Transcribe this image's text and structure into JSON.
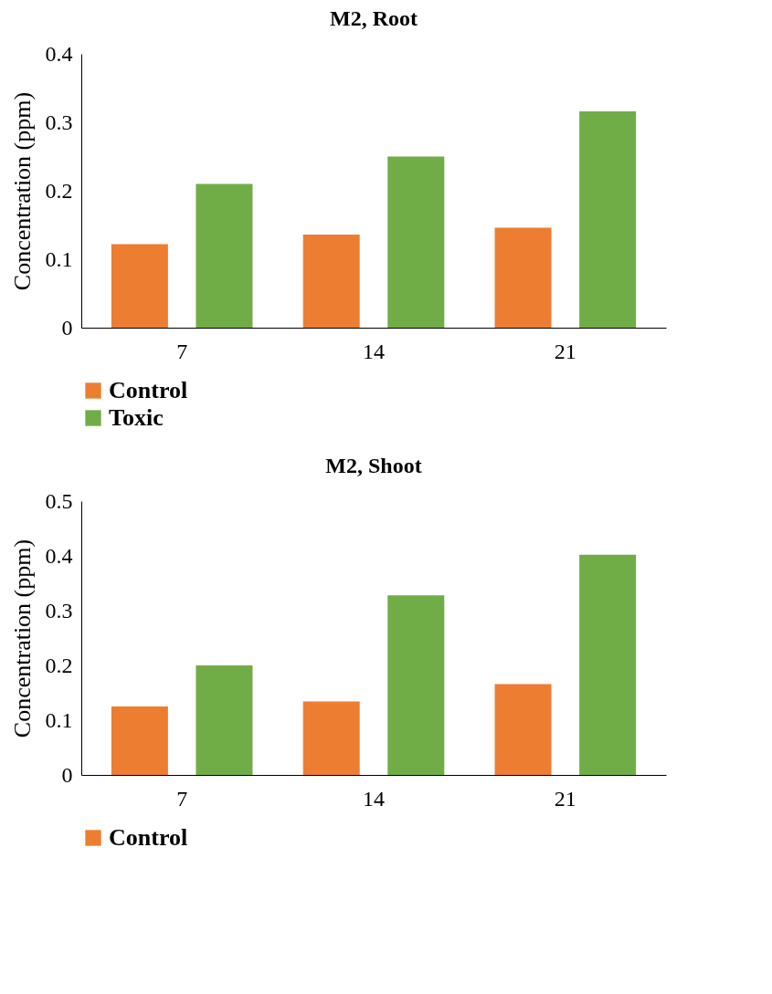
{
  "chart_data": [
    {
      "type": "bar",
      "title": "M2, Root",
      "ylabel": "Concentration (ppm)",
      "categories": [
        "7",
        "14",
        "21"
      ],
      "ylim": [
        0,
        0.4
      ],
      "yticks": [
        0,
        0.1,
        0.2,
        0.3,
        0.4
      ],
      "grid": false,
      "legend": "bottom",
      "series": [
        {
          "name": "Control",
          "color": "#ed7d31",
          "values": [
            0.122,
            0.136,
            0.146
          ]
        },
        {
          "name": "Toxic",
          "color": "#70ad47",
          "values": [
            0.21,
            0.25,
            0.316
          ]
        }
      ]
    },
    {
      "type": "bar",
      "title": "M2, Shoot",
      "ylabel": "Concentration (ppm)",
      "categories": [
        "7",
        "14",
        "21"
      ],
      "ylim": [
        0,
        0.5
      ],
      "yticks": [
        0,
        0.1,
        0.2,
        0.3,
        0.4,
        0.5
      ],
      "grid": false,
      "legend": "bottom",
      "series": [
        {
          "name": "Control",
          "color": "#ed7d31",
          "values": [
            0.125,
            0.134,
            0.166
          ]
        },
        {
          "color": "#70ad47",
          "values": [
            0.2,
            0.328,
            0.402
          ]
        }
      ]
    }
  ]
}
